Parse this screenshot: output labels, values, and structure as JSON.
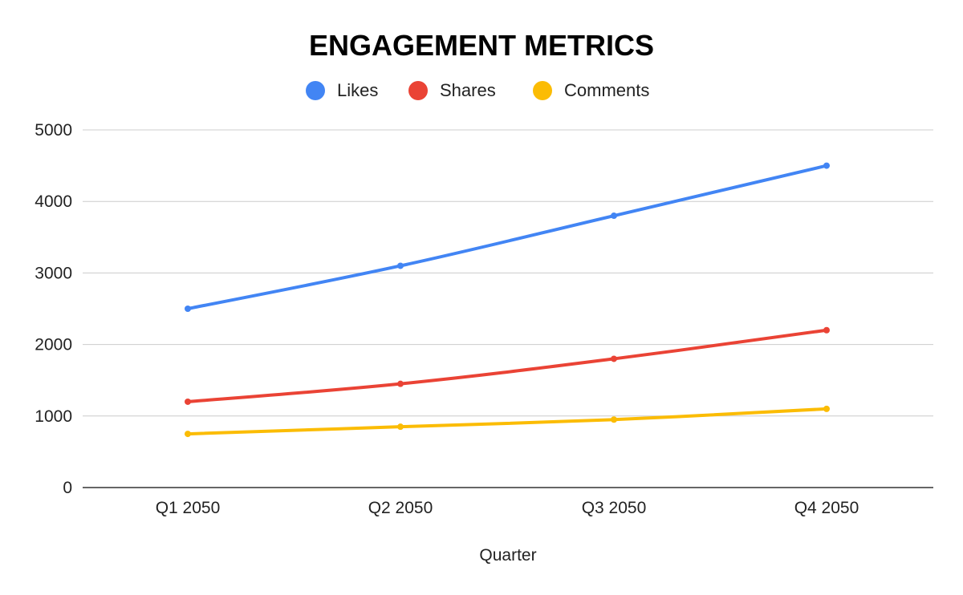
{
  "chart_data": {
    "type": "line",
    "title": "ENGAGEMENT METRICS",
    "xlabel": "Quarter",
    "ylabel": "",
    "categories": [
      "Q1 2050",
      "Q2 2050",
      "Q3 2050",
      "Q4 2050"
    ],
    "ylim": [
      0,
      5000
    ],
    "yticks": [
      0,
      1000,
      2000,
      3000,
      4000,
      5000
    ],
    "grid": true,
    "legend_position": "top",
    "series": [
      {
        "name": "Likes",
        "color": "#4285F4",
        "values": [
          2500,
          3100,
          3800,
          4500
        ]
      },
      {
        "name": "Shares",
        "color": "#EA4335",
        "values": [
          1200,
          1450,
          1800,
          2200
        ]
      },
      {
        "name": "Comments",
        "color": "#FBBC04",
        "values": [
          750,
          850,
          950,
          1100
        ]
      }
    ]
  }
}
